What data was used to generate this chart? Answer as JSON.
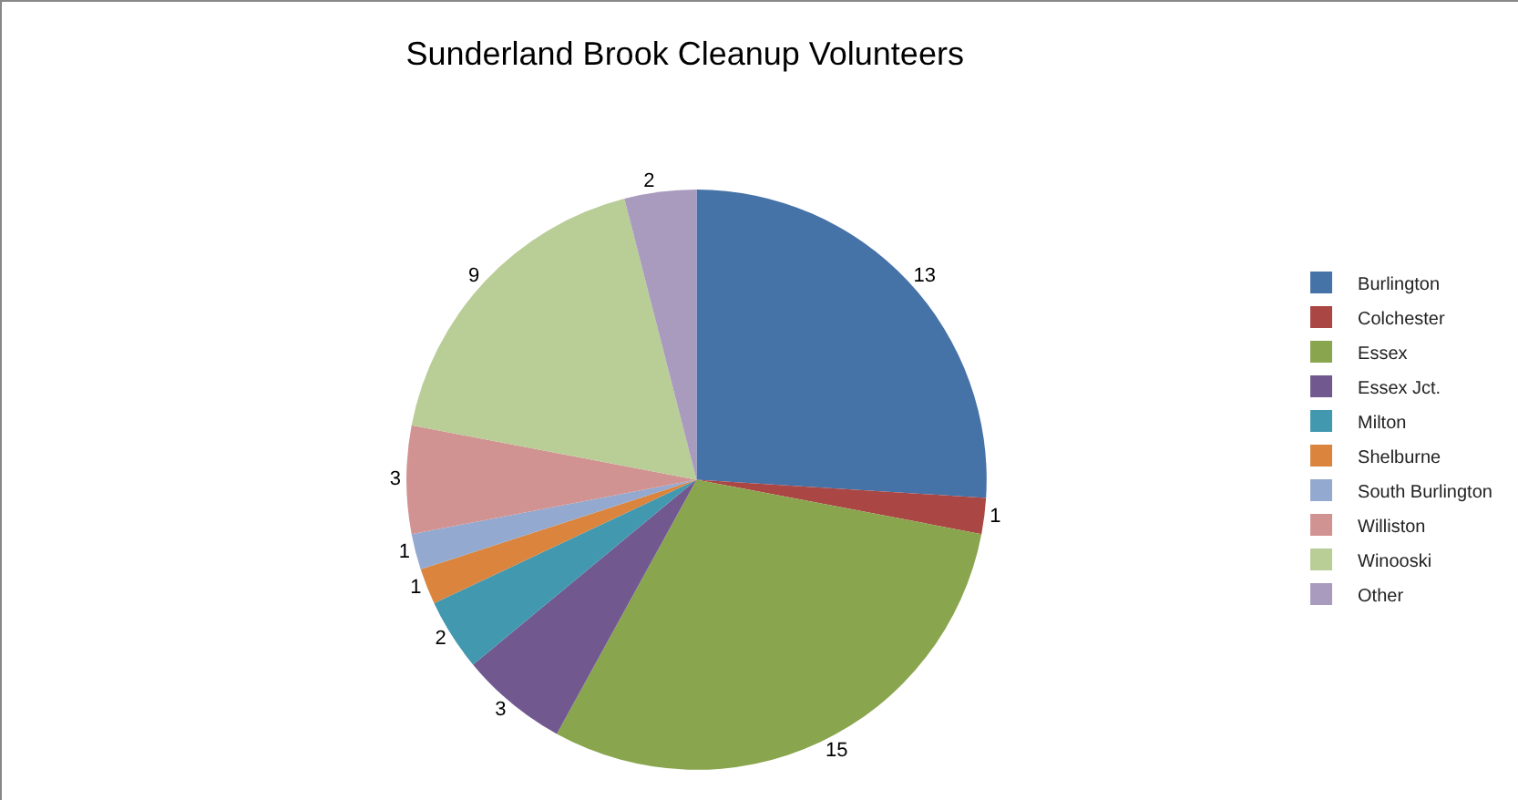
{
  "chart_data": {
    "type": "pie",
    "title": "Sunderland Brook Cleanup Volunteers",
    "categories": [
      "Burlington",
      "Colchester",
      "Essex",
      "Essex Jct.",
      "Milton",
      "Shelburne",
      "South Burlington",
      "Williston",
      "Winooski",
      "Other"
    ],
    "values": [
      13,
      1,
      15,
      3,
      2,
      1,
      1,
      3,
      9,
      2
    ],
    "colors": [
      "#4572a7",
      "#aa4643",
      "#89a54e",
      "#71588f",
      "#4198af",
      "#db843d",
      "#93a9cf",
      "#d19392",
      "#b9cd96",
      "#a99bbd"
    ],
    "data_labels": true,
    "legend": "right"
  }
}
